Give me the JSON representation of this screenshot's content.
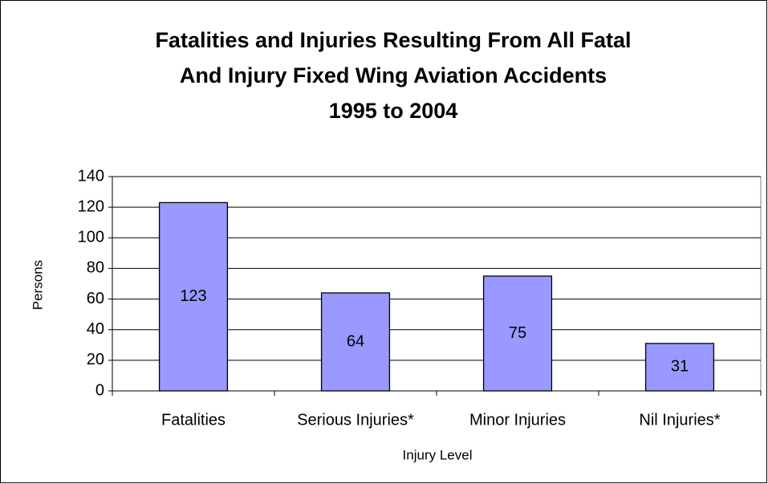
{
  "chart_data": {
    "type": "bar",
    "title": [
      "Fatalities and Injuries Resulting From All Fatal",
      "And Injury Fixed Wing Aviation Accidents",
      "1995 to 2004"
    ],
    "x_label": "Injury Level",
    "y_label": "Persons",
    "categories": [
      "Fatalities",
      "Serious Injuries*",
      "Minor Injuries",
      "Nil Injuries*"
    ],
    "values": [
      123,
      64,
      75,
      31
    ],
    "color": "#9999ff",
    "ylim": [
      0,
      140
    ],
    "yticks": [
      0,
      20,
      40,
      60,
      80,
      100,
      120,
      140
    ],
    "grid": true,
    "data_labels": true
  }
}
